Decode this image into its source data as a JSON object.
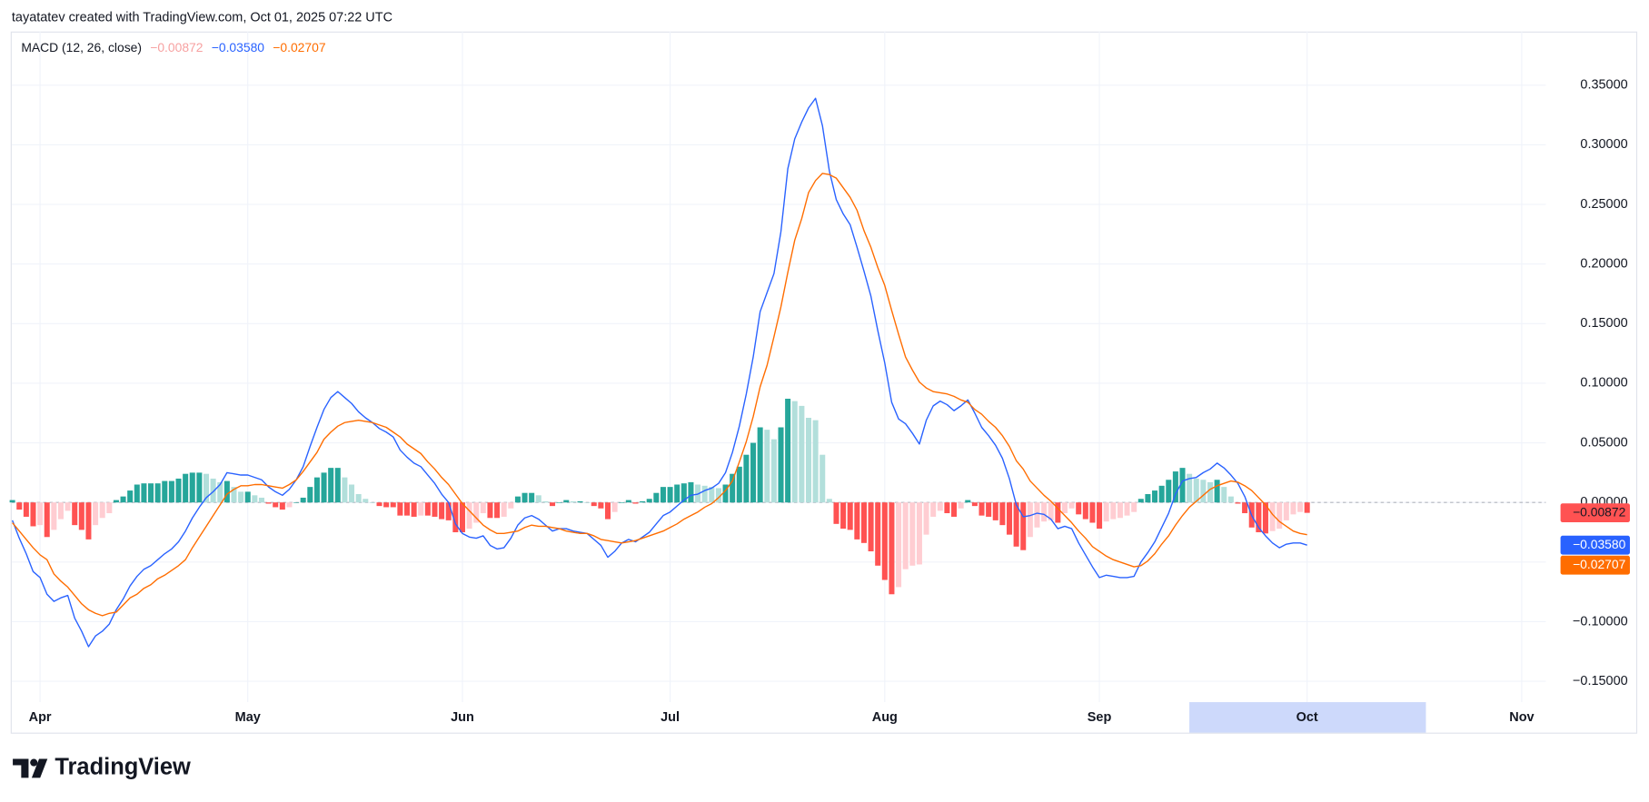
{
  "header": "tayatatev created with TradingView.com, Oct 01, 2025 07:22 UTC",
  "footer_logo": "TradingView",
  "chart_data": {
    "type": "macd",
    "title": "MACD (12, 26, close)",
    "categories": [
      null,
      null,
      null,
      null,
      "Apr",
      null,
      null,
      null,
      null,
      null,
      null,
      null,
      null,
      null,
      null,
      null,
      null,
      null,
      null,
      null,
      null,
      null,
      null,
      null,
      null,
      null,
      null,
      null,
      null,
      null,
      null,
      null,
      null,
      null,
      "May",
      null,
      null,
      null,
      null,
      null,
      null,
      null,
      null,
      null,
      null,
      null,
      null,
      null,
      null,
      null,
      null,
      null,
      null,
      null,
      null,
      null,
      null,
      null,
      null,
      null,
      null,
      null,
      null,
      null,
      null,
      "Jun",
      null,
      null,
      null,
      null,
      null,
      null,
      null,
      null,
      null,
      null,
      null,
      null,
      null,
      null,
      null,
      null,
      null,
      null,
      null,
      null,
      null,
      null,
      null,
      null,
      null,
      null,
      null,
      null,
      null,
      "Jul",
      null,
      null,
      null,
      null,
      null,
      null,
      null,
      null,
      null,
      null,
      null,
      null,
      null,
      null,
      null,
      null,
      null,
      null,
      null,
      null,
      null,
      null,
      null,
      null,
      null,
      null,
      null,
      null,
      null,
      null,
      "Aug",
      null,
      null,
      null,
      null,
      null,
      null,
      null,
      null,
      null,
      null,
      null,
      null,
      null,
      null,
      null,
      null,
      null,
      null,
      null,
      null,
      null,
      null,
      null,
      null,
      null,
      null,
      null,
      null,
      null,
      null,
      "Sep",
      null,
      null,
      null,
      null,
      null,
      null,
      null,
      null,
      null,
      null,
      null,
      null,
      null,
      null,
      null,
      null,
      null,
      null,
      null,
      null,
      null,
      null,
      null,
      null,
      null,
      null,
      null,
      null,
      null,
      "Oct",
      null,
      null,
      null,
      null,
      null,
      null,
      null,
      null,
      null,
      null,
      null,
      null,
      null,
      null,
      null,
      null,
      null,
      null,
      null,
      null,
      null,
      null,
      null,
      null,
      null,
      null,
      null,
      null,
      null,
      null,
      "Nov"
    ],
    "series": [
      {
        "type": "histogram",
        "label": "−0.00872",
        "colors": [
          "#26a69a",
          "#b2dfdb",
          "#ffcdd2",
          "#ff5252"
        ],
        "values": [
          0.002,
          -0.006,
          -0.012,
          -0.02,
          -0.019,
          -0.029,
          -0.023,
          -0.014,
          -0.007,
          -0.019,
          -0.023,
          -0.031,
          -0.019,
          -0.013,
          -0.009,
          0.002,
          0.005,
          0.01,
          0.015,
          0.016,
          0.016,
          0.016,
          0.018,
          0.018,
          0.02,
          0.024,
          0.025,
          0.025,
          0.024,
          0.02,
          0.017,
          0.018,
          0.013,
          0.009,
          0.009,
          0.006,
          0.004,
          -0.001,
          -0.004,
          -0.006,
          -0.004,
          0,
          0.004,
          0.013,
          0.021,
          0.025,
          0.029,
          0.029,
          0.021,
          0.015,
          0.007,
          0.003,
          0,
          -0.003,
          -0.004,
          -0.004,
          -0.011,
          -0.011,
          -0.012,
          -0.011,
          -0.011,
          -0.012,
          -0.014,
          -0.015,
          -0.025,
          -0.025,
          -0.022,
          -0.017,
          -0.009,
          -0.013,
          -0.013,
          -0.012,
          -0.005,
          0.005,
          0.008,
          0.008,
          0.006,
          0.001,
          -0.003,
          0,
          0.002,
          0.001,
          0.001,
          0,
          -0.003,
          -0.005,
          -0.014,
          -0.008,
          0,
          0.002,
          -0.001,
          0.001,
          0.003,
          0.008,
          0.013,
          0.013,
          0.015,
          0.016,
          0.017,
          0.015,
          0.014,
          0.013,
          0.012,
          0.015,
          0.024,
          0.03,
          0.04,
          0.05,
          0.063,
          0.061,
          0.053,
          0.063,
          0.087,
          0.085,
          0.081,
          0.071,
          0.069,
          0.04,
          0.003,
          -0.018,
          -0.022,
          -0.023,
          -0.031,
          -0.034,
          -0.041,
          -0.053,
          -0.065,
          -0.077,
          -0.071,
          -0.056,
          -0.053,
          -0.052,
          -0.027,
          -0.012,
          -0.007,
          -0.009,
          -0.012,
          -0.005,
          0.002,
          -0.003,
          -0.011,
          -0.012,
          -0.015,
          -0.019,
          -0.027,
          -0.037,
          -0.04,
          -0.029,
          -0.021,
          -0.016,
          -0.015,
          -0.017,
          -0.009,
          -0.005,
          -0.01,
          -0.014,
          -0.017,
          -0.022,
          -0.016,
          -0.014,
          -0.013,
          -0.011,
          -0.008,
          0.003,
          0.007,
          0.01,
          0.014,
          0.019,
          0.026,
          0.029,
          0.024,
          0.02,
          0.019,
          0.017,
          0.019,
          0.013,
          0.005,
          -0.001,
          -0.009,
          -0.021,
          -0.025,
          -0.026,
          -0.024,
          -0.022,
          -0.015,
          -0.01,
          -0.008,
          -0.00872,
          null,
          null,
          null,
          null,
          null,
          null,
          null,
          null,
          null,
          null,
          null,
          null,
          null,
          null,
          null,
          null,
          null,
          null,
          null,
          null,
          null,
          null,
          null,
          null,
          null,
          null,
          null,
          null,
          null,
          null,
          null
        ]
      },
      {
        "type": "line",
        "label": "−0.03580",
        "color": "#2962ff",
        "values": [
          -0.015,
          -0.03,
          -0.043,
          -0.058,
          -0.063,
          -0.077,
          -0.083,
          -0.08,
          -0.078,
          -0.097,
          -0.108,
          -0.121,
          -0.112,
          -0.108,
          -0.102,
          -0.09,
          -0.081,
          -0.07,
          -0.062,
          -0.056,
          -0.053,
          -0.048,
          -0.043,
          -0.039,
          -0.033,
          -0.024,
          -0.013,
          -0.004,
          0.004,
          0.009,
          0.015,
          0.025,
          0.024,
          0.023,
          0.023,
          0.021,
          0.019,
          0.013,
          0.009,
          0.006,
          0.011,
          0.019,
          0.03,
          0.047,
          0.063,
          0.078,
          0.088,
          0.093,
          0.088,
          0.083,
          0.076,
          0.071,
          0.067,
          0.062,
          0.059,
          0.055,
          0.044,
          0.038,
          0.033,
          0.03,
          0.023,
          0.016,
          0.007,
          0,
          -0.018,
          -0.026,
          -0.029,
          -0.03,
          -0.028,
          -0.036,
          -0.039,
          -0.038,
          -0.03,
          -0.019,
          -0.013,
          -0.011,
          -0.014,
          -0.019,
          -0.024,
          -0.022,
          -0.022,
          -0.024,
          -0.025,
          -0.026,
          -0.031,
          -0.036,
          -0.046,
          -0.041,
          -0.034,
          -0.031,
          -0.033,
          -0.029,
          -0.025,
          -0.018,
          -0.011,
          -0.008,
          -0.003,
          0.002,
          0.006,
          0.007,
          0.01,
          0.012,
          0.016,
          0.025,
          0.042,
          0.064,
          0.091,
          0.122,
          0.16,
          0.176,
          0.192,
          0.227,
          0.28,
          0.305,
          0.319,
          0.331,
          0.339,
          0.316,
          0.278,
          0.254,
          0.242,
          0.233,
          0.214,
          0.194,
          0.173,
          0.144,
          0.117,
          0.084,
          0.07,
          0.066,
          0.058,
          0.049,
          0.069,
          0.081,
          0.085,
          0.082,
          0.077,
          0.081,
          0.086,
          0.075,
          0.063,
          0.056,
          0.048,
          0.037,
          0.02,
          -0.002,
          -0.012,
          -0.011,
          -0.009,
          -0.01,
          -0.014,
          -0.022,
          -0.02,
          -0.022,
          -0.034,
          -0.044,
          -0.054,
          -0.063,
          -0.061,
          -0.062,
          -0.063,
          -0.063,
          -0.062,
          -0.05,
          -0.042,
          -0.033,
          -0.021,
          -0.009,
          0.007,
          0.018,
          0.02,
          0.021,
          0.025,
          0.028,
          0.033,
          0.029,
          0.023,
          0.016,
          0.005,
          -0.011,
          -0.021,
          -0.028,
          -0.034,
          -0.038,
          -0.035,
          -0.034,
          -0.034,
          -0.0358,
          null,
          null,
          null,
          null,
          null,
          null,
          null,
          null,
          null,
          null,
          null,
          null,
          null,
          null,
          null,
          null,
          null,
          null,
          null,
          null,
          null,
          null,
          null,
          null,
          null,
          null,
          null,
          null,
          null,
          null,
          null
        ]
      },
      {
        "type": "line",
        "label": "−0.02707",
        "color": "#ff6d00",
        "values": [
          -0.017,
          -0.024,
          -0.031,
          -0.038,
          -0.044,
          -0.048,
          -0.06,
          -0.066,
          -0.071,
          -0.078,
          -0.085,
          -0.09,
          -0.093,
          -0.095,
          -0.093,
          -0.092,
          -0.086,
          -0.08,
          -0.077,
          -0.072,
          -0.069,
          -0.064,
          -0.061,
          -0.057,
          -0.053,
          -0.048,
          -0.038,
          -0.029,
          -0.02,
          -0.011,
          -0.002,
          0.007,
          0.011,
          0.014,
          0.014,
          0.015,
          0.015,
          0.014,
          0.013,
          0.012,
          0.015,
          0.019,
          0.026,
          0.034,
          0.042,
          0.053,
          0.059,
          0.064,
          0.067,
          0.068,
          0.069,
          0.068,
          0.067,
          0.065,
          0.063,
          0.059,
          0.055,
          0.049,
          0.045,
          0.041,
          0.034,
          0.028,
          0.021,
          0.015,
          0.007,
          -0.001,
          -0.007,
          -0.013,
          -0.019,
          -0.023,
          -0.026,
          -0.026,
          -0.025,
          -0.024,
          -0.021,
          -0.019,
          -0.02,
          -0.02,
          -0.021,
          -0.022,
          -0.024,
          -0.025,
          -0.026,
          -0.026,
          -0.028,
          -0.031,
          -0.032,
          -0.033,
          -0.034,
          -0.033,
          -0.032,
          -0.03,
          -0.028,
          -0.026,
          -0.024,
          -0.021,
          -0.018,
          -0.014,
          -0.011,
          -0.008,
          -0.004,
          -0.001,
          0.004,
          0.01,
          0.018,
          0.034,
          0.051,
          0.072,
          0.097,
          0.115,
          0.139,
          0.164,
          0.193,
          0.22,
          0.238,
          0.26,
          0.27,
          0.276,
          0.275,
          0.272,
          0.264,
          0.256,
          0.245,
          0.228,
          0.214,
          0.197,
          0.182,
          0.161,
          0.141,
          0.122,
          0.111,
          0.101,
          0.096,
          0.093,
          0.092,
          0.091,
          0.089,
          0.086,
          0.084,
          0.078,
          0.074,
          0.068,
          0.063,
          0.056,
          0.047,
          0.035,
          0.028,
          0.018,
          0.012,
          0.006,
          0.001,
          -0.005,
          -0.011,
          -0.017,
          -0.024,
          -0.03,
          -0.037,
          -0.041,
          -0.045,
          -0.048,
          -0.05,
          -0.052,
          -0.054,
          -0.053,
          -0.049,
          -0.043,
          -0.035,
          -0.028,
          -0.019,
          -0.011,
          -0.004,
          0.001,
          0.006,
          0.011,
          0.014,
          0.016,
          0.018,
          0.017,
          0.014,
          0.01,
          0.004,
          -0.002,
          -0.01,
          -0.016,
          -0.02,
          -0.024,
          -0.026,
          -0.02707,
          null,
          null,
          null,
          null,
          null,
          null,
          null,
          null,
          null,
          null,
          null,
          null,
          null,
          null,
          null,
          null,
          null,
          null,
          null,
          null,
          null,
          null,
          null,
          null,
          null,
          null,
          null,
          null,
          null,
          null,
          null
        ]
      }
    ],
    "ylim": [
      -0.1675,
      0.395
    ],
    "yticks": [
      {
        "value": 0.35,
        "label": "0.35000"
      },
      {
        "value": 0.3,
        "label": "0.30000"
      },
      {
        "value": 0.25,
        "label": "0.25000"
      },
      {
        "value": 0.2,
        "label": "0.20000"
      },
      {
        "value": 0.15,
        "label": "0.15000"
      },
      {
        "value": 0.1,
        "label": "0.10000"
      },
      {
        "value": 0.05,
        "label": "0.05000"
      },
      {
        "value": 0,
        "label": "0.00000"
      },
      {
        "value": -0.05,
        "label": "−0.05000"
      },
      {
        "value": -0.1,
        "label": "−0.10000"
      },
      {
        "value": -0.15,
        "label": "−0.15000"
      }
    ],
    "grid": true,
    "zero_line": true,
    "highlight_category": 187
  }
}
